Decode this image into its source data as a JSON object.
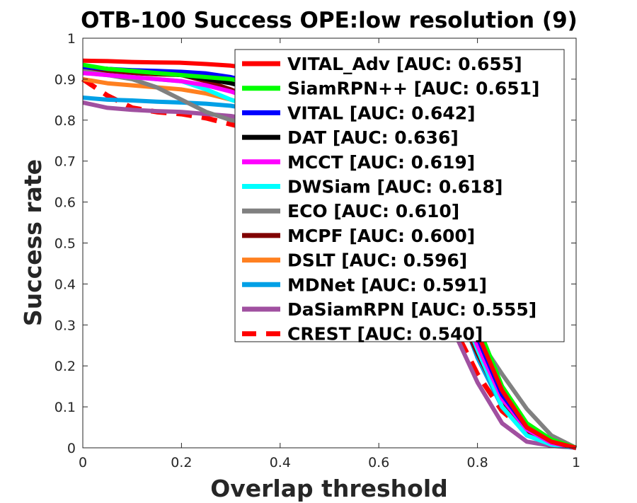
{
  "chart_data": {
    "type": "line",
    "title": "OTB-100 Success OPE:low resolution (9)",
    "xlabel": "Overlap threshold",
    "ylabel": "Success rate",
    "xlim": [
      0,
      1
    ],
    "ylim": [
      0,
      1
    ],
    "x_ticks": [
      "0",
      "0.2",
      "0.4",
      "0.6",
      "0.8",
      "1"
    ],
    "y_ticks": [
      "0",
      "0.1",
      "0.2",
      "0.3",
      "0.4",
      "0.5",
      "0.6",
      "0.7",
      "0.8",
      "0.9",
      "1"
    ],
    "grid": false,
    "legend_position": "top-right",
    "x": [
      0,
      0.05,
      0.1,
      0.15,
      0.2,
      0.25,
      0.3,
      0.35,
      0.4,
      0.45,
      0.5,
      0.55,
      0.6,
      0.65,
      0.7,
      0.75,
      0.8,
      0.85,
      0.9,
      0.95,
      1.0
    ],
    "series": [
      {
        "name": "VITAL_Adv [AUC: 0.655]",
        "color": "#ff0000",
        "dashed": false,
        "values": [
          0.945,
          0.944,
          0.942,
          0.941,
          0.94,
          0.937,
          0.933,
          0.925,
          0.91,
          0.89,
          0.86,
          0.82,
          0.76,
          0.68,
          0.57,
          0.44,
          0.28,
          0.14,
          0.05,
          0.015,
          0
        ]
      },
      {
        "name": "SiamRPN++ [AUC: 0.651]",
        "color": "#00ff00",
        "dashed": false,
        "values": [
          0.935,
          0.925,
          0.92,
          0.915,
          0.91,
          0.905,
          0.9,
          0.89,
          0.87,
          0.85,
          0.82,
          0.79,
          0.74,
          0.67,
          0.57,
          0.45,
          0.3,
          0.15,
          0.06,
          0.02,
          0
        ]
      },
      {
        "name": "VITAL [AUC: 0.642]",
        "color": "#0000ff",
        "dashed": false,
        "values": [
          0.93,
          0.925,
          0.922,
          0.92,
          0.918,
          0.914,
          0.905,
          0.89,
          0.87,
          0.85,
          0.82,
          0.78,
          0.73,
          0.65,
          0.55,
          0.43,
          0.27,
          0.13,
          0.05,
          0.015,
          0
        ]
      },
      {
        "name": "DAT [AUC: 0.636]",
        "color": "#000000",
        "dashed": false,
        "values": [
          0.93,
          0.925,
          0.92,
          0.915,
          0.91,
          0.9,
          0.89,
          0.875,
          0.855,
          0.83,
          0.8,
          0.76,
          0.71,
          0.64,
          0.54,
          0.42,
          0.27,
          0.13,
          0.05,
          0.015,
          0
        ]
      },
      {
        "name": "MCCT [AUC: 0.619]",
        "color": "#ff00ff",
        "dashed": false,
        "values": [
          0.915,
          0.91,
          0.905,
          0.9,
          0.895,
          0.885,
          0.87,
          0.85,
          0.83,
          0.8,
          0.77,
          0.73,
          0.68,
          0.61,
          0.52,
          0.4,
          0.25,
          0.12,
          0.045,
          0.012,
          0
        ]
      },
      {
        "name": "DWSiam [AUC: 0.618]",
        "color": "#00ffff",
        "dashed": false,
        "values": [
          0.915,
          0.91,
          0.905,
          0.9,
          0.895,
          0.875,
          0.85,
          0.83,
          0.81,
          0.79,
          0.76,
          0.72,
          0.67,
          0.6,
          0.51,
          0.39,
          0.24,
          0.1,
          0.03,
          0.008,
          0
        ]
      },
      {
        "name": "ECO [AUC: 0.610]",
        "color": "#808080",
        "dashed": false,
        "values": [
          0.92,
          0.91,
          0.9,
          0.88,
          0.85,
          0.82,
          0.8,
          0.79,
          0.77,
          0.75,
          0.72,
          0.68,
          0.63,
          0.57,
          0.49,
          0.39,
          0.27,
          0.18,
          0.095,
          0.03,
          0
        ]
      },
      {
        "name": "MCPF [AUC: 0.600]",
        "color": "#800000",
        "dashed": false,
        "values": [
          0.925,
          0.92,
          0.915,
          0.912,
          0.91,
          0.895,
          0.875,
          0.85,
          0.82,
          0.79,
          0.75,
          0.7,
          0.64,
          0.56,
          0.47,
          0.36,
          0.23,
          0.11,
          0.04,
          0.01,
          0
        ]
      },
      {
        "name": "DSLT [AUC: 0.596]",
        "color": "#ff8020",
        "dashed": false,
        "values": [
          0.9,
          0.89,
          0.885,
          0.88,
          0.875,
          0.865,
          0.85,
          0.83,
          0.81,
          0.78,
          0.74,
          0.7,
          0.64,
          0.57,
          0.48,
          0.37,
          0.23,
          0.11,
          0.04,
          0.012,
          0
        ]
      },
      {
        "name": "MDNet [AUC: 0.591]",
        "color": "#00a0e6",
        "dashed": false,
        "values": [
          0.855,
          0.85,
          0.848,
          0.845,
          0.843,
          0.84,
          0.835,
          0.825,
          0.81,
          0.79,
          0.76,
          0.72,
          0.66,
          0.59,
          0.5,
          0.38,
          0.22,
          0.1,
          0.035,
          0.01,
          0
        ]
      },
      {
        "name": "DaSiamRPN [AUC: 0.555]",
        "color": "#a050a0",
        "dashed": false,
        "values": [
          0.843,
          0.83,
          0.825,
          0.822,
          0.82,
          0.815,
          0.81,
          0.8,
          0.785,
          0.76,
          0.72,
          0.67,
          0.6,
          0.51,
          0.41,
          0.29,
          0.16,
          0.06,
          0.015,
          0.005,
          0
        ]
      },
      {
        "name": "CREST [AUC: 0.540]",
        "color": "#ff0000",
        "dashed": true,
        "values": [
          0.9,
          0.86,
          0.83,
          0.82,
          0.815,
          0.805,
          0.79,
          0.775,
          0.755,
          0.725,
          0.69,
          0.64,
          0.58,
          0.5,
          0.41,
          0.3,
          0.18,
          0.09,
          0.04,
          0.012,
          0
        ]
      }
    ]
  }
}
